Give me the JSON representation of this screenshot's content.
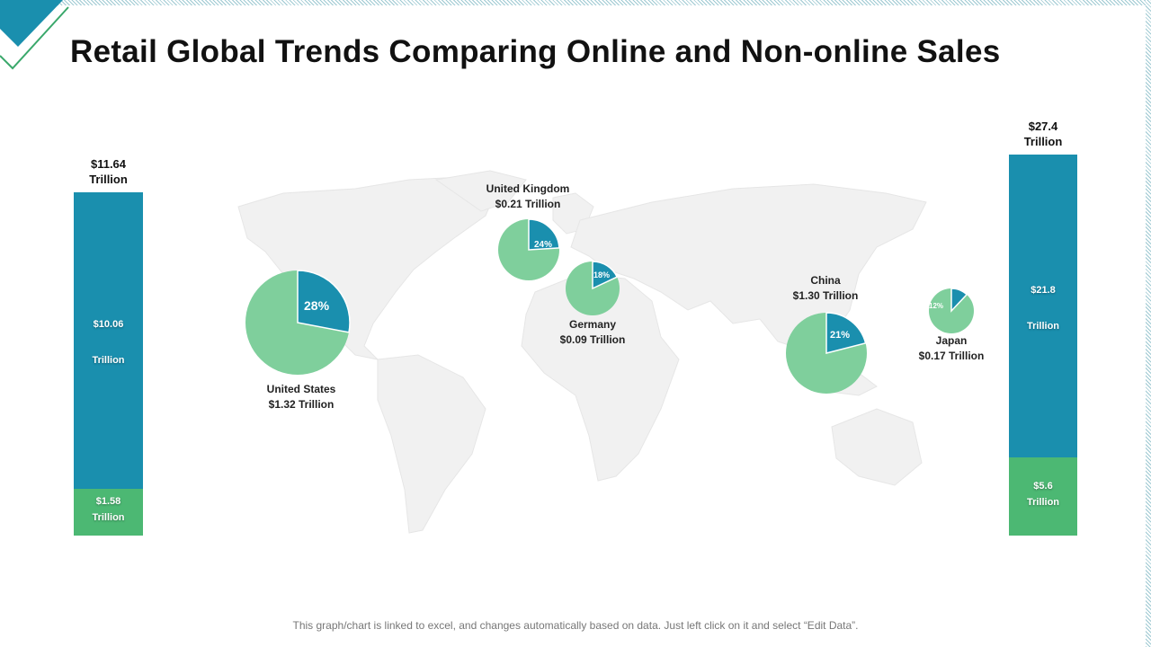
{
  "title": "Retail Global Trends Comparing Online and Non-online Sales",
  "footer": "This graph/chart is linked to excel, and changes automatically based on data. Just left click on it and select “Edit Data”.",
  "colors": {
    "online": "#1a8fae",
    "non_online": "#7fcf9c",
    "bar_bottom": "#4cb873",
    "map": "#f2f2f2"
  },
  "left_bar": {
    "total_line1": "$11.64",
    "total_line2": "Trillion",
    "top_value": "$10.06",
    "top_unit": "Trillion",
    "bottom_value": "$1.58",
    "bottom_unit": "Trillion"
  },
  "right_bar": {
    "total_line1": "$27.4",
    "total_line2": "Trillion",
    "top_value": "$21.8",
    "top_unit": "Trillion",
    "bottom_value": "$5.6",
    "bottom_unit": "Trillion"
  },
  "countries": {
    "us": {
      "name": "United States",
      "value": "$1.32 Trillion",
      "pct_label": "28%"
    },
    "uk": {
      "name": "United Kingdom",
      "value": "$0.21 Trillion",
      "pct_label": "24%"
    },
    "de": {
      "name": "Germany",
      "value": "$0.09 Trillion",
      "pct_label": "18%"
    },
    "cn": {
      "name": "China",
      "value": "$1.30 Trillion",
      "pct_label": "21%"
    },
    "jp": {
      "name": "Japan",
      "value": "$0.17 Trillion",
      "pct_label": "12%"
    }
  },
  "chart_data": [
    {
      "type": "bar",
      "categories": [
        ""
      ],
      "series": [
        {
          "values": [
            10.06
          ]
        },
        {
          "values": [
            1.58
          ]
        }
      ],
      "total": 11.64,
      "unit": "Trillion"
    },
    {
      "type": "pie",
      "labels": [
        "United States",
        "United Kingdom",
        "Germany",
        "China",
        "Japan"
      ],
      "values": [
        1.32,
        0.21,
        0.09,
        1.3,
        0.17
      ],
      "online_share_percent": [
        28,
        24,
        18,
        21,
        12
      ],
      "unit": "Trillion"
    },
    {
      "type": "bar",
      "categories": [
        ""
      ],
      "series": [
        {
          "values": [
            21.8
          ]
        },
        {
          "values": [
            5.6
          ]
        }
      ],
      "total": 27.4,
      "unit": "Trillion"
    }
  ]
}
